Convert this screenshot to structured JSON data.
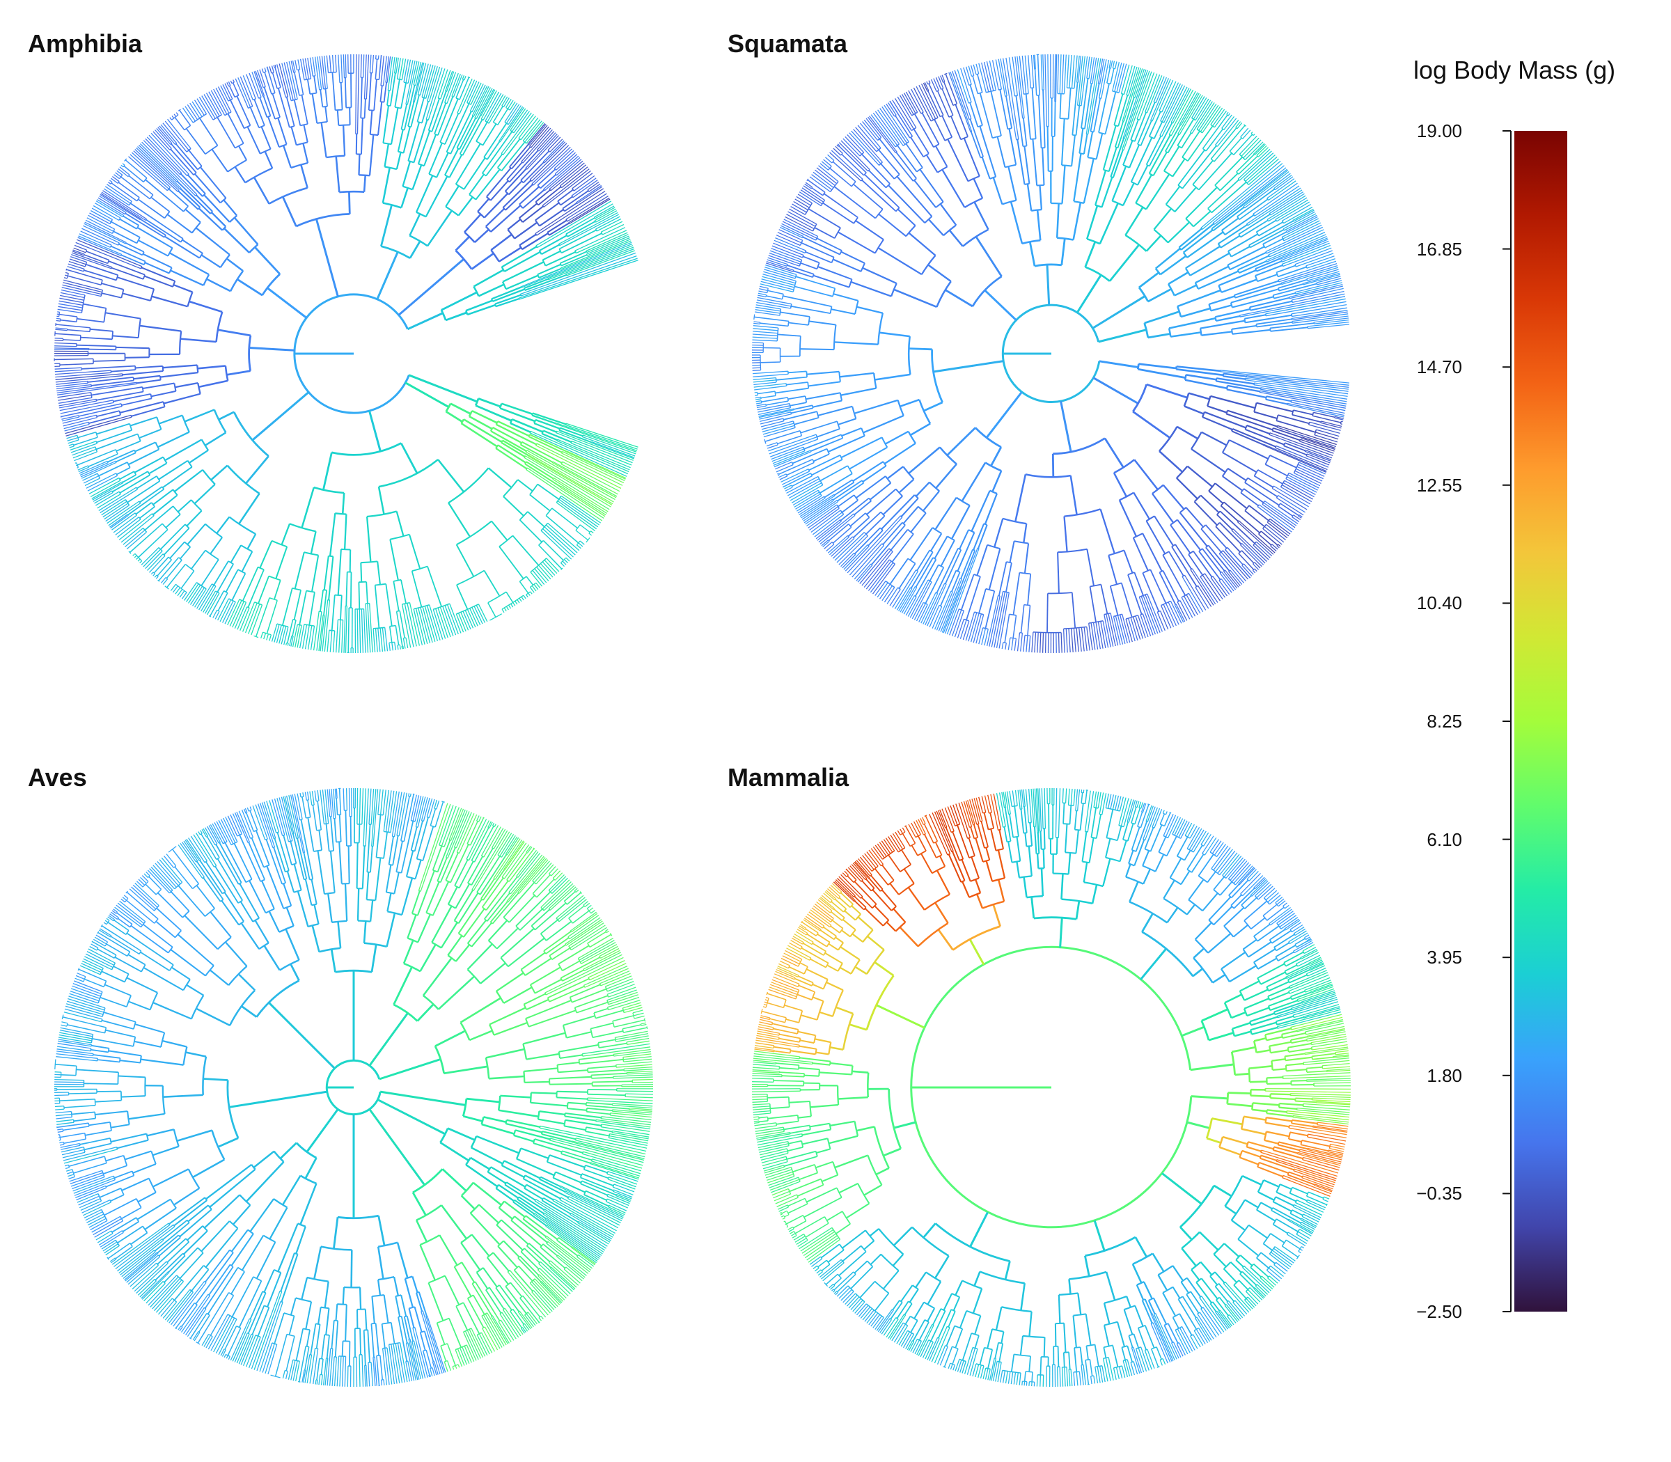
{
  "panels": [
    {
      "name": "Amphibia",
      "root_value": 2.4,
      "clades": [
        {
          "span": [
            0,
            0.02
          ],
          "base": 4.2,
          "tip": 4.5
        },
        {
          "span": [
            0.02,
            0.05
          ],
          "base": 4.8,
          "tip": 7.0
        },
        {
          "span": [
            0.05,
            0.3
          ],
          "base": 3.5,
          "tip": 4.2
        },
        {
          "span": [
            0.3,
            0.45
          ],
          "base": 2.6,
          "tip": 3.2
        },
        {
          "span": [
            0.45,
            0.57
          ],
          "base": 1.5,
          "tip": 0.2
        },
        {
          "span": [
            0.57,
            0.66
          ],
          "base": 2.0,
          "tip": 1.4
        },
        {
          "span": [
            0.66,
            0.8
          ],
          "base": 1.6,
          "tip": 0.8
        },
        {
          "span": [
            0.8,
            0.9
          ],
          "base": 2.5,
          "tip": 3.8
        },
        {
          "span": [
            0.9,
            0.96
          ],
          "base": 1.5,
          "tip": 0.0
        },
        {
          "span": [
            0.96,
            1.0
          ],
          "base": 3.2,
          "tip": 4.0
        }
      ]
    },
    {
      "name": "Squamata",
      "root_value": 3.0,
      "clades": [
        {
          "span": [
            0,
            0.02
          ],
          "base": 1.9,
          "tip": 1.5
        },
        {
          "span": [
            0.02,
            0.12
          ],
          "base": 1.4,
          "tip": -0.2
        },
        {
          "span": [
            0.12,
            0.3
          ],
          "base": 1.6,
          "tip": 0.3
        },
        {
          "span": [
            0.3,
            0.4
          ],
          "base": 2.0,
          "tip": 1.4
        },
        {
          "span": [
            0.4,
            0.55
          ],
          "base": 2.6,
          "tip": 1.8
        },
        {
          "span": [
            0.55,
            0.7
          ],
          "base": 2.0,
          "tip": 0.8
        },
        {
          "span": [
            0.7,
            0.8
          ],
          "base": 2.6,
          "tip": 2.0
        },
        {
          "span": [
            0.8,
            0.9
          ],
          "base": 3.5,
          "tip": 4.0
        },
        {
          "span": [
            0.9,
            0.95
          ],
          "base": 2.8,
          "tip": 2.4
        },
        {
          "span": [
            0.95,
            1.0
          ],
          "base": 3.2,
          "tip": 2.2
        }
      ]
    },
    {
      "name": "Aves",
      "root_value": 4.0,
      "clades": [
        {
          "span": [
            0,
            0.05
          ],
          "base": 4.6,
          "tip": 5.5
        },
        {
          "span": [
            0.05,
            0.1
          ],
          "base": 4.2,
          "tip": 4.0
        },
        {
          "span": [
            0.1,
            0.2
          ],
          "base": 4.5,
          "tip": 6.2
        },
        {
          "span": [
            0.2,
            0.3
          ],
          "base": 3.5,
          "tip": 2.5
        },
        {
          "span": [
            0.3,
            0.4
          ],
          "base": 3.8,
          "tip": 3.0
        },
        {
          "span": [
            0.4,
            0.55
          ],
          "base": 3.5,
          "tip": 2.6
        },
        {
          "span": [
            0.55,
            0.7
          ],
          "base": 3.4,
          "tip": 2.4
        },
        {
          "span": [
            0.7,
            0.8
          ],
          "base": 3.5,
          "tip": 3.0
        },
        {
          "span": [
            0.8,
            0.9
          ],
          "base": 4.6,
          "tip": 6.2
        },
        {
          "span": [
            0.9,
            1.0
          ],
          "base": 4.8,
          "tip": 6.5
        }
      ]
    },
    {
      "name": "Mammalia",
      "root_value": 6.4,
      "clades": [
        {
          "span": [
            0,
            0.02
          ],
          "base": 6.5,
          "tip": 7.6
        },
        {
          "span": [
            0.02,
            0.06
          ],
          "base": 6.2,
          "tip": 13.5
        },
        {
          "span": [
            0.06,
            0.15
          ],
          "base": 4.2,
          "tip": 3.6
        },
        {
          "span": [
            0.15,
            0.25
          ],
          "base": 3.8,
          "tip": 2.8
        },
        {
          "span": [
            0.25,
            0.4
          ],
          "base": 3.6,
          "tip": 3.2
        },
        {
          "span": [
            0.4,
            0.52
          ],
          "base": 5.5,
          "tip": 6.5
        },
        {
          "span": [
            0.52,
            0.62
          ],
          "base": 8.0,
          "tip": 11.5
        },
        {
          "span": [
            0.62,
            0.72
          ],
          "base": 9.0,
          "tip": 15.5
        },
        {
          "span": [
            0.72,
            0.8
          ],
          "base": 4.2,
          "tip": 3.6
        },
        {
          "span": [
            0.8,
            0.92
          ],
          "base": 3.5,
          "tip": 2.4
        },
        {
          "span": [
            0.92,
            0.96
          ],
          "base": 6.0,
          "tip": 4.5
        },
        {
          "span": [
            0.96,
            1.0
          ],
          "base": 6.5,
          "tip": 7.5
        }
      ]
    }
  ],
  "colorbar": {
    "title": "log Body Mass (g)",
    "min": -2.5,
    "max": 19.0,
    "ticks": [
      "19.00",
      "16.85",
      "14.70",
      "12.55",
      "10.40",
      "8.25",
      "6.10",
      "3.95",
      "1.80",
      "−0.35",
      "−2.50"
    ],
    "tick_values": [
      19.0,
      16.85,
      14.7,
      12.55,
      10.4,
      8.25,
      6.1,
      3.95,
      1.8,
      -0.35,
      -2.5
    ],
    "palette": [
      "#30123b",
      "#4145ab",
      "#4675ed",
      "#39a2fc",
      "#1bcfd4",
      "#24eca6",
      "#61fc6c",
      "#a4fc3b",
      "#d1e834",
      "#f3c63a",
      "#fe9b2d",
      "#f36315",
      "#d93806",
      "#b11901",
      "#7a0402"
    ]
  }
}
